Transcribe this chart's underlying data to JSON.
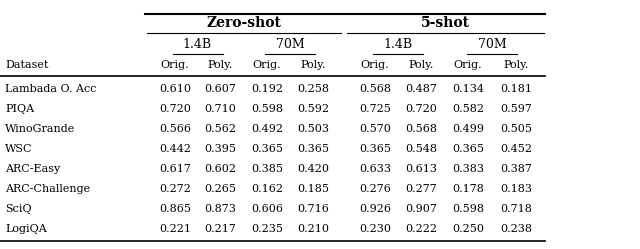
{
  "title_zeroshot": "Zero-shot",
  "title_fiveshot": "5-shot",
  "col_header_row1": [
    "1.4B",
    "70M",
    "1.4B",
    "70M"
  ],
  "col_header_row2": [
    "Orig.",
    "Poly.",
    "Orig.",
    "Poly.",
    "Orig.",
    "Poly.",
    "Orig.",
    "Poly."
  ],
  "row_header": "Dataset",
  "datasets": [
    "Lambada O. Acc",
    "PIQA",
    "WinoGrande",
    "WSC",
    "ARC-Easy",
    "ARC-Challenge",
    "SciQ",
    "LogiQA"
  ],
  "data": [
    [
      0.61,
      0.607,
      0.192,
      0.258,
      0.568,
      0.487,
      0.134,
      0.181
    ],
    [
      0.72,
      0.71,
      0.598,
      0.592,
      0.725,
      0.72,
      0.582,
      0.597
    ],
    [
      0.566,
      0.562,
      0.492,
      0.503,
      0.57,
      0.568,
      0.499,
      0.505
    ],
    [
      0.442,
      0.395,
      0.365,
      0.365,
      0.365,
      0.548,
      0.365,
      0.452
    ],
    [
      0.617,
      0.602,
      0.385,
      0.42,
      0.633,
      0.613,
      0.383,
      0.387
    ],
    [
      0.272,
      0.265,
      0.162,
      0.185,
      0.276,
      0.277,
      0.178,
      0.183
    ],
    [
      0.865,
      0.873,
      0.606,
      0.716,
      0.926,
      0.907,
      0.598,
      0.718
    ],
    [
      0.221,
      0.217,
      0.235,
      0.21,
      0.23,
      0.222,
      0.25,
      0.238
    ]
  ],
  "bg_color": "#ffffff",
  "text_color": "#000000",
  "fontsize": 8.0,
  "header_fontsize": 9.0,
  "bold_fontsize": 10.0
}
